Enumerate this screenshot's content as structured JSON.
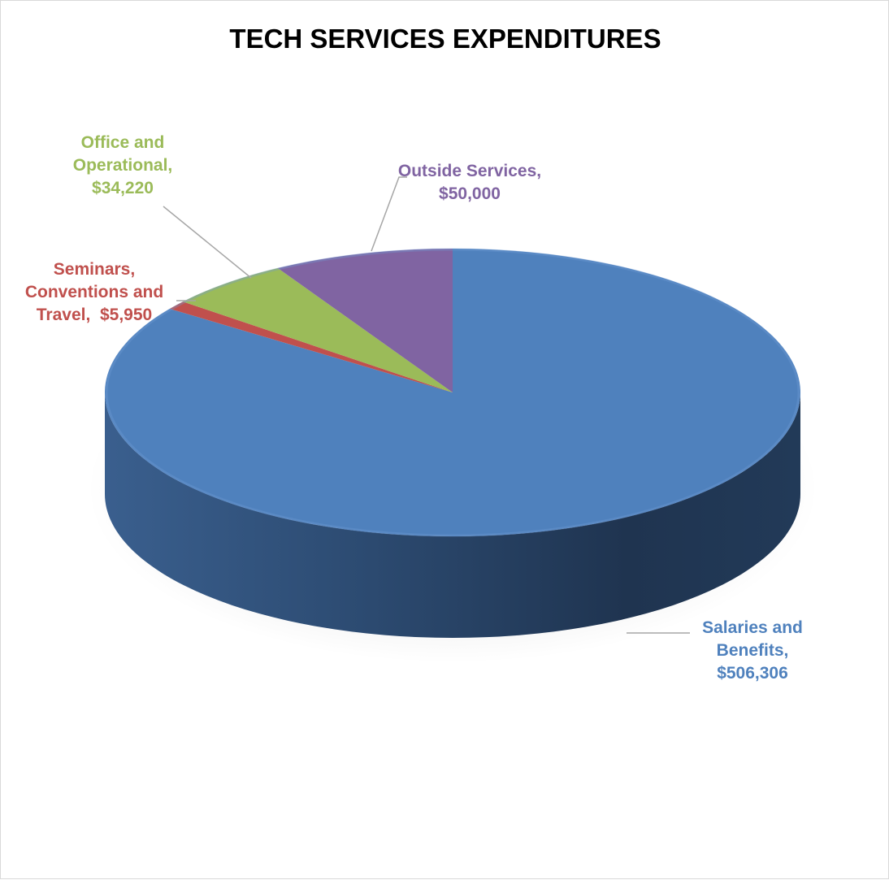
{
  "chart_data": {
    "type": "pie",
    "title": "TECH SERVICES EXPENDITURES",
    "slices": [
      {
        "category": "Salaries and Benefits",
        "value": 506306,
        "label_lines": [
          "Salaries and",
          "Benefits,",
          "$506,306"
        ],
        "color": "#4f81bd",
        "label_color": "#4f81bd"
      },
      {
        "category": "Seminars, Conventions and Travel",
        "value": 5950,
        "label_lines": [
          "Seminars,",
          "Conventions and",
          "Travel,  $5,950"
        ],
        "color": "#c0504d",
        "label_color": "#c0504d"
      },
      {
        "category": "Office and Operational",
        "value": 34220,
        "label_lines": [
          "Office and",
          "Operational,",
          "$34,220"
        ],
        "color": "#9bbb59",
        "label_color": "#9bbb59"
      },
      {
        "category": "Outside Services",
        "value": 50000,
        "label_lines": [
          "Outside Services,",
          "$50,000"
        ],
        "color": "#8064a2",
        "label_color": "#8064a2"
      }
    ]
  }
}
